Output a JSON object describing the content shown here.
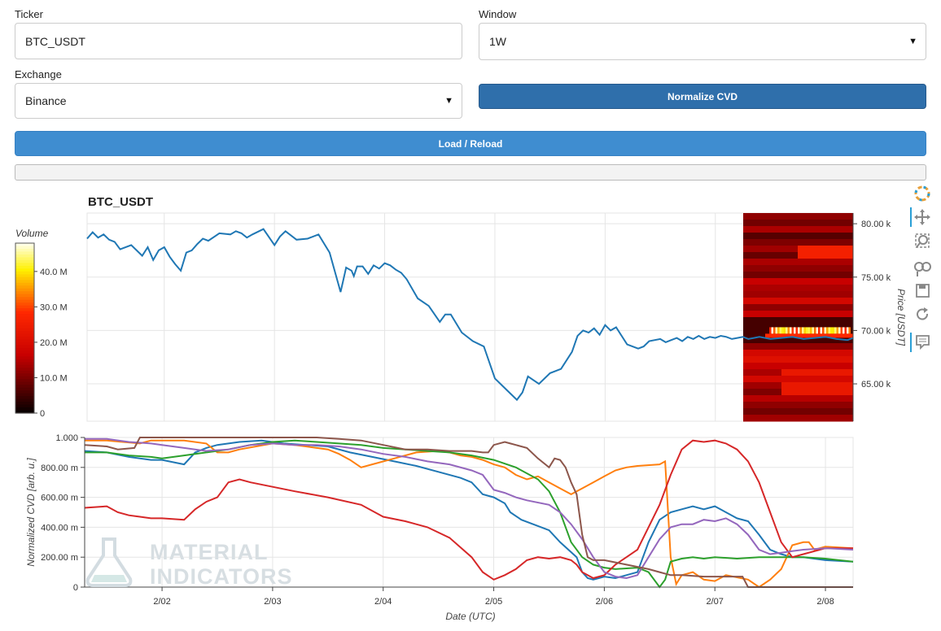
{
  "form": {
    "ticker_label": "Ticker",
    "ticker_value": "BTC_USDT",
    "window_label": "Window",
    "window_value": "1W",
    "exchange_label": "Exchange",
    "exchange_value": "Binance",
    "normalize_label": "Normalize CVD",
    "load_label": "Load / Reload"
  },
  "watermark": {
    "line1": "MATERIAL",
    "line2": "INDICATORS"
  },
  "colors": {
    "price_line": "#1f77b4",
    "accent": "#2f6fab"
  },
  "chart_data": [
    {
      "type": "line",
      "title": "BTC_USDT",
      "ylabel": "Price [USDT]",
      "y_side": "right",
      "ylim": [
        61.5,
        81
      ],
      "y_ticks": [
        "80.00 k",
        "75.00 k",
        "70.00 k",
        "65.00 k"
      ],
      "y_tick_values": [
        80,
        75,
        70,
        65
      ],
      "x_range": [
        1.3,
        8.25
      ],
      "series": [
        {
          "color": "#1f77b4",
          "x": [
            1.3,
            1.35,
            1.4,
            1.45,
            1.5,
            1.55,
            1.6,
            1.7,
            1.8,
            1.85,
            1.9,
            1.95,
            2.0,
            2.05,
            2.1,
            2.15,
            2.2,
            2.25,
            2.3,
            2.35,
            2.4,
            2.5,
            2.6,
            2.65,
            2.7,
            2.75,
            2.8,
            2.9,
            3.0,
            3.05,
            3.1,
            3.2,
            3.3,
            3.4,
            3.5,
            3.6,
            3.62,
            3.65,
            3.7,
            3.72,
            3.75,
            3.8,
            3.85,
            3.9,
            3.95,
            4.0,
            4.05,
            4.1,
            4.15,
            4.2,
            4.3,
            4.4,
            4.5,
            4.55,
            4.6,
            4.7,
            4.8,
            4.9,
            5.0,
            5.1,
            5.2,
            5.25,
            5.3,
            5.4,
            5.5,
            5.6,
            5.7,
            5.75,
            5.8,
            5.85,
            5.9,
            5.95,
            6.0,
            6.05,
            6.1,
            6.2,
            6.3,
            6.35,
            6.4,
            6.5,
            6.55,
            6.6,
            6.65,
            6.7,
            6.75,
            6.8,
            6.85,
            6.9,
            6.95,
            7.0,
            7.05,
            7.1,
            7.15,
            7.2,
            7.25,
            7.3,
            7.35,
            7.4,
            7.5,
            7.6,
            7.7,
            7.8,
            7.9,
            8.0,
            8.1,
            8.2,
            8.25
          ],
          "y": [
            78.6,
            79.2,
            78.7,
            79.0,
            78.5,
            78.3,
            77.6,
            78.0,
            77.0,
            77.8,
            76.6,
            77.5,
            77.8,
            76.9,
            76.2,
            75.6,
            77.3,
            77.5,
            78.1,
            78.6,
            78.4,
            79.1,
            79.0,
            79.3,
            79.1,
            78.7,
            79.0,
            79.5,
            78.0,
            78.8,
            79.3,
            78.5,
            78.6,
            79.0,
            77.3,
            73.6,
            74.5,
            75.9,
            75.6,
            75.1,
            76.0,
            76.0,
            75.3,
            76.1,
            75.8,
            76.3,
            76.1,
            75.7,
            75.4,
            74.8,
            73.0,
            72.3,
            70.8,
            71.5,
            71.5,
            69.8,
            69.0,
            68.5,
            65.5,
            64.5,
            63.5,
            64.2,
            65.7,
            65.0,
            66.0,
            66.4,
            68.0,
            69.5,
            70.0,
            69.8,
            70.2,
            69.6,
            70.5,
            70.0,
            70.3,
            68.7,
            68.3,
            68.5,
            69.0,
            69.2,
            68.9,
            69.1,
            69.3,
            69.0,
            69.4,
            69.2,
            69.5,
            69.2,
            69.4,
            69.3,
            69.5,
            69.4,
            69.2,
            69.3,
            69.4,
            69.2,
            69.3,
            69.4,
            69.2,
            69.3,
            69.4,
            69.2,
            69.3,
            69.4,
            69.2,
            69.1,
            69.3
          ]
        }
      ],
      "heatmap": {
        "color_label": "Volume",
        "color_ticks": [
          "40.0 M",
          "30.0 M",
          "20.0 M",
          "10.0 M",
          "0"
        ],
        "color_tick_values": [
          40,
          30,
          20,
          10,
          0
        ],
        "color_max": 48
      }
    },
    {
      "type": "line",
      "xlabel": "Date (UTC)",
      "ylabel": "Normalized CVD [arb. u.]",
      "ylim": [
        0,
        1
      ],
      "y_ticks": [
        "1.000",
        "800.00 m",
        "600.00 m",
        "400.00 m",
        "200.00 m",
        "0"
      ],
      "y_tick_values": [
        1.0,
        0.8,
        0.6,
        0.4,
        0.2,
        0
      ],
      "x_range": [
        1.3,
        8.25
      ],
      "x_ticks": [
        "2/02",
        "2/03",
        "2/04",
        "2/05",
        "2/06",
        "2/07",
        "2/08"
      ],
      "x_tick_values": [
        2,
        3,
        4,
        5,
        6,
        7,
        8
      ],
      "series": [
        {
          "color": "#1f77b4",
          "x": [
            1.3,
            1.5,
            1.7,
            1.9,
            2.0,
            2.2,
            2.3,
            2.4,
            2.5,
            2.7,
            2.9,
            3.1,
            3.3,
            3.5,
            3.7,
            3.9,
            4.1,
            4.3,
            4.5,
            4.7,
            4.8,
            4.9,
            5.0,
            5.1,
            5.15,
            5.25,
            5.5,
            5.6,
            5.75,
            5.8,
            5.85,
            5.9,
            5.95,
            6.0,
            6.1,
            6.3,
            6.4,
            6.5,
            6.6,
            6.7,
            6.8,
            6.9,
            7.0,
            7.1,
            7.2,
            7.3,
            7.4,
            7.5,
            7.6,
            7.7,
            7.8,
            8.0,
            8.25
          ],
          "y": [
            0.91,
            0.9,
            0.87,
            0.85,
            0.85,
            0.82,
            0.9,
            0.93,
            0.95,
            0.97,
            0.98,
            0.96,
            0.95,
            0.94,
            0.9,
            0.87,
            0.84,
            0.81,
            0.77,
            0.73,
            0.7,
            0.62,
            0.6,
            0.56,
            0.5,
            0.45,
            0.38,
            0.3,
            0.2,
            0.1,
            0.06,
            0.05,
            0.06,
            0.07,
            0.06,
            0.1,
            0.3,
            0.45,
            0.5,
            0.52,
            0.54,
            0.52,
            0.54,
            0.5,
            0.46,
            0.44,
            0.35,
            0.25,
            0.22,
            0.2,
            0.2,
            0.18,
            0.17
          ]
        },
        {
          "color": "#ff7f0e",
          "x": [
            1.3,
            1.5,
            1.8,
            1.9,
            2.0,
            2.2,
            2.4,
            2.5,
            2.6,
            2.7,
            3.0,
            3.2,
            3.3,
            3.4,
            3.5,
            3.6,
            3.7,
            3.8,
            3.9,
            4.1,
            4.3,
            4.5,
            4.6,
            4.7,
            4.8,
            4.9,
            5.0,
            5.1,
            5.2,
            5.3,
            5.4,
            5.5,
            5.6,
            5.7,
            5.8,
            5.9,
            6.0,
            6.1,
            6.2,
            6.3,
            6.5,
            6.55,
            6.6,
            6.65,
            6.7,
            6.8,
            6.9,
            7.0,
            7.1,
            7.3,
            7.4,
            7.5,
            7.6,
            7.7,
            7.8,
            7.85,
            7.9,
            8.0,
            8.25
          ],
          "y": [
            0.98,
            0.98,
            0.96,
            0.98,
            0.98,
            0.98,
            0.96,
            0.9,
            0.9,
            0.92,
            0.96,
            0.95,
            0.94,
            0.93,
            0.92,
            0.89,
            0.85,
            0.8,
            0.82,
            0.86,
            0.9,
            0.91,
            0.9,
            0.88,
            0.87,
            0.85,
            0.82,
            0.8,
            0.75,
            0.72,
            0.74,
            0.7,
            0.66,
            0.62,
            0.66,
            0.7,
            0.74,
            0.78,
            0.8,
            0.81,
            0.82,
            0.84,
            0.2,
            0.02,
            0.08,
            0.1,
            0.05,
            0.04,
            0.08,
            0.05,
            0.0,
            0.05,
            0.12,
            0.28,
            0.3,
            0.3,
            0.25,
            0.27,
            0.26
          ]
        },
        {
          "color": "#2ca02c",
          "x": [
            1.3,
            1.5,
            1.7,
            1.9,
            2.0,
            2.2,
            2.4,
            2.6,
            2.8,
            3.0,
            3.2,
            3.4,
            3.6,
            3.8,
            4.0,
            4.2,
            4.4,
            4.6,
            4.8,
            5.0,
            5.2,
            5.4,
            5.5,
            5.6,
            5.7,
            5.8,
            5.9,
            6.0,
            6.1,
            6.3,
            6.4,
            6.5,
            6.55,
            6.6,
            6.7,
            6.8,
            6.9,
            7.0,
            7.2,
            7.4,
            7.6,
            7.8,
            8.0,
            8.25
          ],
          "y": [
            0.9,
            0.9,
            0.88,
            0.87,
            0.86,
            0.88,
            0.9,
            0.92,
            0.95,
            0.97,
            0.98,
            0.97,
            0.96,
            0.95,
            0.93,
            0.92,
            0.91,
            0.9,
            0.88,
            0.85,
            0.8,
            0.72,
            0.64,
            0.5,
            0.3,
            0.2,
            0.15,
            0.13,
            0.12,
            0.13,
            0.1,
            0.0,
            0.05,
            0.17,
            0.19,
            0.2,
            0.19,
            0.2,
            0.19,
            0.2,
            0.2,
            0.2,
            0.19,
            0.17
          ]
        },
        {
          "color": "#d62728",
          "x": [
            1.3,
            1.5,
            1.6,
            1.7,
            1.8,
            1.9,
            2.0,
            2.2,
            2.3,
            2.4,
            2.5,
            2.6,
            2.7,
            2.8,
            3.0,
            3.2,
            3.5,
            3.8,
            4.0,
            4.2,
            4.4,
            4.6,
            4.8,
            4.9,
            5.0,
            5.1,
            5.2,
            5.3,
            5.4,
            5.5,
            5.6,
            5.7,
            5.75,
            5.8,
            5.9,
            6.0,
            6.1,
            6.2,
            6.3,
            6.4,
            6.5,
            6.6,
            6.7,
            6.8,
            6.9,
            7.0,
            7.1,
            7.2,
            7.3,
            7.4,
            7.5,
            7.6,
            7.7,
            7.8,
            8.0,
            8.25
          ],
          "y": [
            0.53,
            0.54,
            0.5,
            0.48,
            0.47,
            0.46,
            0.46,
            0.45,
            0.52,
            0.57,
            0.6,
            0.7,
            0.72,
            0.7,
            0.67,
            0.64,
            0.6,
            0.55,
            0.47,
            0.44,
            0.4,
            0.33,
            0.2,
            0.1,
            0.05,
            0.08,
            0.12,
            0.18,
            0.2,
            0.19,
            0.2,
            0.18,
            0.15,
            0.1,
            0.06,
            0.08,
            0.15,
            0.2,
            0.25,
            0.4,
            0.55,
            0.75,
            0.92,
            0.98,
            0.97,
            0.98,
            0.96,
            0.92,
            0.84,
            0.7,
            0.5,
            0.3,
            0.2,
            0.22,
            0.26,
            0.26
          ]
        },
        {
          "color": "#9467bd",
          "x": [
            1.3,
            1.5,
            1.7,
            1.9,
            2.0,
            2.2,
            2.4,
            2.6,
            2.8,
            3.0,
            3.2,
            3.4,
            3.6,
            3.8,
            4.0,
            4.2,
            4.4,
            4.6,
            4.8,
            4.9,
            5.0,
            5.1,
            5.2,
            5.3,
            5.5,
            5.6,
            5.7,
            5.8,
            5.9,
            6.0,
            6.1,
            6.2,
            6.3,
            6.4,
            6.5,
            6.6,
            6.7,
            6.8,
            6.9,
            7.0,
            7.1,
            7.2,
            7.3,
            7.4,
            7.5,
            7.6,
            7.7,
            7.8,
            8.0,
            8.25
          ],
          "y": [
            0.99,
            0.99,
            0.97,
            0.96,
            0.95,
            0.93,
            0.91,
            0.92,
            0.95,
            0.96,
            0.95,
            0.95,
            0.94,
            0.92,
            0.89,
            0.87,
            0.84,
            0.82,
            0.78,
            0.75,
            0.65,
            0.63,
            0.6,
            0.58,
            0.55,
            0.5,
            0.42,
            0.32,
            0.2,
            0.1,
            0.07,
            0.06,
            0.08,
            0.2,
            0.32,
            0.4,
            0.42,
            0.42,
            0.45,
            0.44,
            0.46,
            0.42,
            0.35,
            0.25,
            0.22,
            0.23,
            0.24,
            0.25,
            0.26,
            0.25
          ]
        },
        {
          "color": "#8c564b",
          "x": [
            1.3,
            1.5,
            1.6,
            1.75,
            1.8,
            2.0,
            2.2,
            2.4,
            2.6,
            2.8,
            3.0,
            3.2,
            3.4,
            3.6,
            3.8,
            4.0,
            4.2,
            4.4,
            4.6,
            4.8,
            4.9,
            4.95,
            5.0,
            5.1,
            5.15,
            5.2,
            5.3,
            5.4,
            5.5,
            5.55,
            5.6,
            5.65,
            5.7,
            5.75,
            5.8,
            5.85,
            5.9,
            6.0,
            6.2,
            6.4,
            6.5,
            6.6,
            6.7,
            6.9,
            7.1,
            7.25,
            7.3,
            7.35,
            7.5,
            7.8,
            8.25
          ],
          "y": [
            0.95,
            0.94,
            0.92,
            0.93,
            1.0,
            1.0,
            1.0,
            1.0,
            1.0,
            1.0,
            1.0,
            1.0,
            1.0,
            0.99,
            0.98,
            0.95,
            0.92,
            0.92,
            0.91,
            0.91,
            0.9,
            0.9,
            0.95,
            0.97,
            0.96,
            0.95,
            0.93,
            0.86,
            0.8,
            0.86,
            0.85,
            0.8,
            0.7,
            0.62,
            0.35,
            0.2,
            0.18,
            0.18,
            0.15,
            0.12,
            0.1,
            0.08,
            0.08,
            0.07,
            0.07,
            0.07,
            0.0,
            0.0,
            0.0,
            0.0,
            0.0
          ]
        }
      ]
    }
  ]
}
